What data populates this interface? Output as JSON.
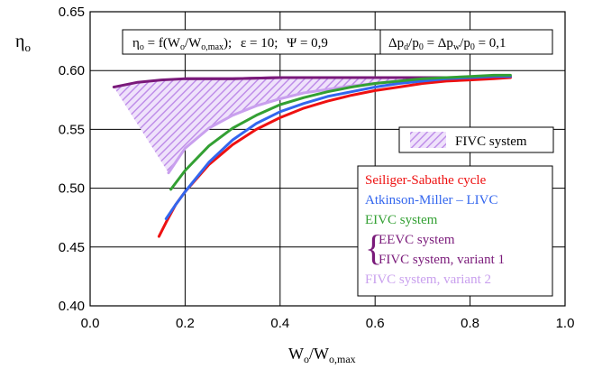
{
  "chart_data": {
    "type": "line",
    "xlim": [
      0.0,
      1.0
    ],
    "ylim": [
      0.4,
      0.65
    ],
    "x_ticks": [
      "0.0",
      "0.2",
      "0.4",
      "0.6",
      "0.8",
      "1.0"
    ],
    "y_ticks": [
      "0.40",
      "0.45",
      "0.50",
      "0.55",
      "0.60",
      "0.65"
    ],
    "grid": true,
    "ylabel": {
      "main": "η",
      "sub": "o"
    },
    "xlabel": {
      "main": "W",
      "sub1": "o",
      "sep": "/W",
      "sub2": "o,max"
    },
    "header": {
      "formula_main": "η",
      "formula_sub": "o",
      "formula_eq": " = f(W",
      "formula_sub2": "o",
      "formula_slash": "/W",
      "formula_sub3": "o,max",
      "formula_close": ");",
      "epsilon": "ε = 10;",
      "psi": "Ψ = 0,9",
      "pressure_1": "Δp",
      "pressure_1_sub": "d",
      "pressure_2": "/p",
      "pressure_2_sub": "0",
      "pressure_3": " = Δp",
      "pressure_3_sub": "w",
      "pressure_4": "/p",
      "pressure_4_sub": "0",
      "pressure_5": " = 0,1"
    },
    "area_legend": "FIVC system",
    "series": [
      {
        "name": "Seiliger-Sabathe cycle",
        "color": "#ee1111",
        "x": [
          0.145,
          0.16,
          0.18,
          0.2,
          0.25,
          0.3,
          0.35,
          0.4,
          0.45,
          0.5,
          0.55,
          0.6,
          0.65,
          0.7,
          0.75,
          0.8,
          0.85,
          0.885
        ],
        "y": [
          0.459,
          0.471,
          0.486,
          0.497,
          0.52,
          0.537,
          0.55,
          0.56,
          0.568,
          0.574,
          0.579,
          0.583,
          0.586,
          0.589,
          0.591,
          0.592,
          0.593,
          0.594
        ]
      },
      {
        "name": "Atkinson-Miller – LIVC",
        "color": "#3366ee",
        "x": [
          0.16,
          0.18,
          0.2,
          0.25,
          0.3,
          0.35,
          0.4,
          0.45,
          0.5,
          0.55,
          0.6,
          0.65,
          0.7,
          0.75,
          0.8,
          0.85,
          0.885
        ],
        "y": [
          0.474,
          0.486,
          0.497,
          0.522,
          0.541,
          0.555,
          0.565,
          0.572,
          0.578,
          0.582,
          0.586,
          0.589,
          0.591,
          0.593,
          0.594,
          0.595,
          0.595
        ]
      },
      {
        "name": "EIVC system",
        "color": "#33a033",
        "x": [
          0.17,
          0.2,
          0.25,
          0.3,
          0.35,
          0.4,
          0.45,
          0.5,
          0.55,
          0.6,
          0.65,
          0.7,
          0.75,
          0.8,
          0.85,
          0.885
        ],
        "y": [
          0.499,
          0.515,
          0.536,
          0.551,
          0.562,
          0.571,
          0.577,
          0.582,
          0.586,
          0.589,
          0.591,
          0.593,
          0.594,
          0.595,
          0.596,
          0.596
        ]
      },
      {
        "name": "EEVC system",
        "color": "#7a1a7a",
        "x": [
          0.05,
          0.1,
          0.15,
          0.2,
          0.3,
          0.4,
          0.5,
          0.6,
          0.7,
          0.78
        ],
        "y": [
          0.586,
          0.59,
          0.592,
          0.593,
          0.593,
          0.594,
          0.594,
          0.594,
          0.594,
          0.594
        ]
      },
      {
        "name": "FIVC system, variant 1",
        "color": "#7a1a7a",
        "x": [
          0.2,
          0.3,
          0.4,
          0.5,
          0.6,
          0.7,
          0.8,
          0.885
        ],
        "y": [
          0.593,
          0.593,
          0.594,
          0.594,
          0.594,
          0.594,
          0.594,
          0.595
        ]
      },
      {
        "name": "FIVC system, variant 2",
        "color": "#c9a0ee",
        "x": [
          0.165,
          0.2,
          0.25,
          0.3,
          0.35,
          0.4,
          0.45,
          0.5,
          0.55,
          0.6,
          0.65,
          0.7,
          0.75,
          0.78
        ],
        "y": [
          0.513,
          0.534,
          0.551,
          0.562,
          0.57,
          0.576,
          0.581,
          0.584,
          0.587,
          0.589,
          0.591,
          0.592,
          0.593,
          0.594
        ]
      }
    ],
    "legend": {
      "placement": "lower-right",
      "entries": [
        {
          "label": "Seiliger-Sabathe cycle",
          "color": "#ee1111"
        },
        {
          "label": "Atkinson-Miller – LIVC",
          "color": "#3366ee"
        },
        {
          "label": "EIVC system",
          "color": "#33a033"
        },
        {
          "label": "EEVC system",
          "color": "#7a1a7a"
        },
        {
          "label": "FIVC system, variant 1",
          "color": "#7a1a7a"
        },
        {
          "label": "FIVC system, variant 2",
          "color": "#c9a0ee"
        }
      ]
    }
  }
}
